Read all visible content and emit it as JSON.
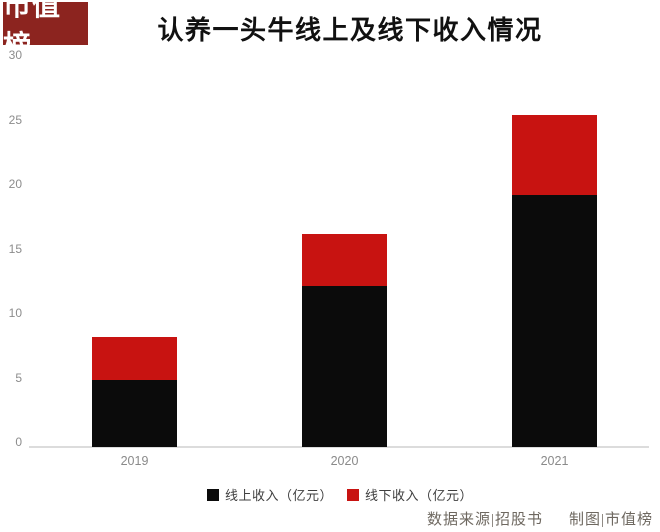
{
  "logo": {
    "text": "市值榜"
  },
  "title": "认养一头牛线上及线下收入情况",
  "chart_data": {
    "type": "bar",
    "stacked": true,
    "title": "认养一头牛线上及线下收入情况",
    "categories": [
      "2019",
      "2020",
      "2021"
    ],
    "series": [
      {
        "name": "线上收入（亿元）",
        "color": "#0b0b0b",
        "values": [
          5.2,
          12.5,
          19.5
        ]
      },
      {
        "name": "线下收入（亿元）",
        "color": "#c81311",
        "values": [
          3.3,
          4.0,
          6.2
        ]
      }
    ],
    "totals": [
      8.5,
      16.5,
      25.7
    ],
    "xlabel": "",
    "ylabel": "",
    "ylim": [
      0,
      30
    ],
    "yticks": [
      30,
      25,
      20,
      15,
      10,
      5,
      0
    ],
    "grid": false,
    "legend_position": "bottom"
  },
  "legend": {
    "items": [
      {
        "label": "线上收入（亿元）",
        "color": "#0b0b0b"
      },
      {
        "label": "线下收入（亿元）",
        "color": "#c81311"
      }
    ]
  },
  "footer": {
    "source_label": "数据来源|招股书",
    "credit_label": "制图|市值榜"
  },
  "colors": {
    "bar_online": "#0b0b0b",
    "bar_offline": "#c81311",
    "logo_background": "#8c241f",
    "axis_line": "#dcdcdc",
    "tick_text": "#8c8c8c"
  }
}
